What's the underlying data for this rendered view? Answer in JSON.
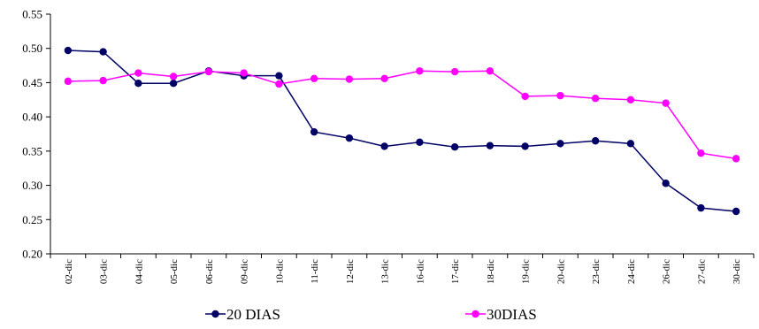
{
  "chart_data": {
    "type": "line",
    "title": "",
    "xlabel": "",
    "ylabel": "",
    "ylim": [
      0.2,
      0.55
    ],
    "yticks": [
      "0.20",
      "0.25",
      "0.30",
      "0.35",
      "0.40",
      "0.45",
      "0.50",
      "0.55"
    ],
    "categories": [
      "02-dic",
      "03-dic",
      "04-dic",
      "05-dic",
      "06-dic",
      "09-dic",
      "10-dic",
      "11-dic",
      "12-dic",
      "13-dic",
      "16-dic",
      "17-dic",
      "18-dic",
      "19-dic",
      "20-dic",
      "23-dic",
      "24-dic",
      "26-dic",
      "27-dic",
      "30-dic"
    ],
    "grid": false,
    "legend_position": "bottom",
    "series": [
      {
        "name": "20 DIAS",
        "color": "#000066",
        "values": [
          0.497,
          0.495,
          0.449,
          0.449,
          0.467,
          0.46,
          0.46,
          0.378,
          0.369,
          0.357,
          0.363,
          0.356,
          0.358,
          0.357,
          0.361,
          0.365,
          0.361,
          0.303,
          0.267,
          0.262
        ]
      },
      {
        "name": "30DIAS",
        "color": "#FF00FF",
        "values": [
          0.452,
          0.453,
          0.464,
          0.459,
          0.466,
          0.464,
          0.448,
          0.456,
          0.455,
          0.456,
          0.467,
          0.466,
          0.467,
          0.43,
          0.431,
          0.427,
          0.425,
          0.42,
          0.347,
          0.339
        ]
      }
    ]
  }
}
